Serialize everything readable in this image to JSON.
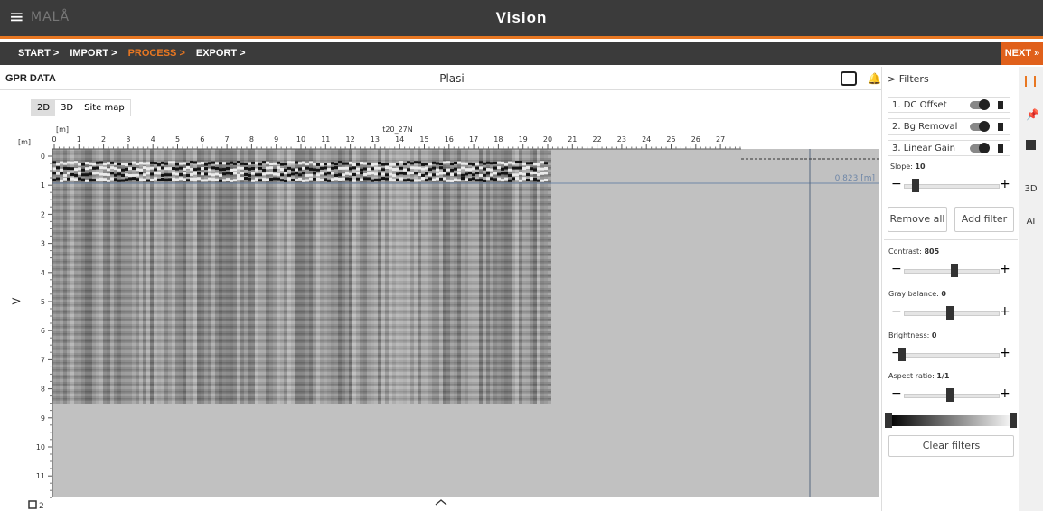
{
  "header": {
    "menu_icon": "≡",
    "logo": "MALÅ",
    "title": "Vision"
  },
  "breadcrumb": {
    "steps": [
      "START >",
      "IMPORT >",
      "PROCESS >",
      "EXPORT >"
    ],
    "next": "NEXT »"
  },
  "panel": {
    "title": "GPR DATA",
    "file": "Plasi",
    "tabs": [
      "2D",
      "3D",
      "Site map"
    ],
    "x_unit": "[m]",
    "y_unit": "[m]",
    "x_ticks": [
      0,
      1,
      2,
      3,
      4,
      5,
      6,
      7,
      8,
      9,
      10,
      11,
      12,
      13,
      14,
      15,
      16,
      17,
      18,
      19,
      20,
      21,
      22,
      23,
      24,
      25,
      26,
      27
    ],
    "y_ticks": [
      0,
      1,
      2,
      3,
      4,
      5,
      6,
      7,
      8,
      9,
      10,
      11
    ],
    "profile": "t20_27N",
    "cursor_label": "0.823 [m]",
    "zoom_label": "2",
    "expand": ">"
  },
  "filters": {
    "title": "> Filters",
    "items": [
      "1. DC Offset",
      "2. Bg Removal",
      "3. Linear Gain"
    ],
    "slope_label": "Slope:",
    "slope": 10,
    "remove_all": "Remove all",
    "add_filter": "Add filter",
    "sliders": [
      {
        "label": "Contrast:",
        "value": 805
      },
      {
        "label": "Gray balance:",
        "value": 0
      },
      {
        "label": "Brightness:",
        "value": 0
      },
      {
        "label": "Aspect ratio:",
        "value": "1/1"
      }
    ],
    "clear": "Clear filters"
  },
  "side_tools": [
    "3D",
    "AI"
  ]
}
